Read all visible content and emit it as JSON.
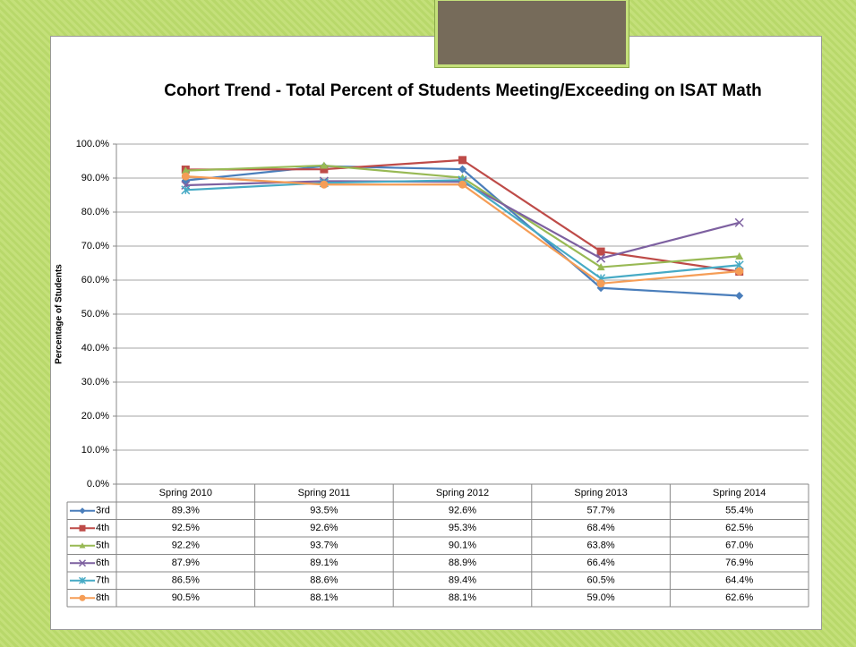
{
  "chart_data": {
    "type": "line",
    "title": "Cohort Trend - Total Percent of Students Meeting/Exceeding on ISAT Math",
    "y_label": "Percentage of Students",
    "categories": [
      "Spring 2010",
      "Spring 2011",
      "Spring 2012",
      "Spring 2013",
      "Spring 2014"
    ],
    "ylim": [
      0,
      100
    ],
    "yticks": [
      {
        "value": 0,
        "label": "0.0%"
      },
      {
        "value": 10,
        "label": "10.0%"
      },
      {
        "value": 20,
        "label": "20.0%"
      },
      {
        "value": 30,
        "label": "30.0%"
      },
      {
        "value": 40,
        "label": "40.0%"
      },
      {
        "value": 50,
        "label": "50.0%"
      },
      {
        "value": 60,
        "label": "60.0%"
      },
      {
        "value": 70,
        "label": "70.0%"
      },
      {
        "value": 80,
        "label": "80.0%"
      },
      {
        "value": 90,
        "label": "90.0%"
      },
      {
        "value": 100,
        "label": "100.0%"
      }
    ],
    "grid": true,
    "series": [
      {
        "name": "3rd",
        "color": "#4a7ebb",
        "marker": "diamond",
        "values": [
          89.3,
          93.5,
          92.6,
          57.7,
          55.4
        ],
        "value_labels": [
          "89.3%",
          "93.5%",
          "92.6%",
          "57.7%",
          "55.4%"
        ]
      },
      {
        "name": "4th",
        "color": "#be4b48",
        "marker": "square",
        "values": [
          92.5,
          92.6,
          95.3,
          68.4,
          62.5
        ],
        "value_labels": [
          "92.5%",
          "92.6%",
          "95.3%",
          "68.4%",
          "62.5%"
        ]
      },
      {
        "name": "5th",
        "color": "#98b954",
        "marker": "triangle",
        "values": [
          92.2,
          93.7,
          90.1,
          63.8,
          67.0
        ],
        "value_labels": [
          "92.2%",
          "93.7%",
          "90.1%",
          "63.8%",
          "67.0%"
        ]
      },
      {
        "name": "6th",
        "color": "#7d60a0",
        "marker": "x",
        "values": [
          87.9,
          89.1,
          88.9,
          66.4,
          76.9
        ],
        "value_labels": [
          "87.9%",
          "89.1%",
          "88.9%",
          "66.4%",
          "76.9%"
        ]
      },
      {
        "name": "7th",
        "color": "#46aac5",
        "marker": "star",
        "values": [
          86.5,
          88.6,
          89.4,
          60.5,
          64.4
        ],
        "value_labels": [
          "86.5%",
          "88.6%",
          "89.4%",
          "60.5%",
          "64.4%"
        ]
      },
      {
        "name": "8th",
        "color": "#f59d56",
        "marker": "circle",
        "values": [
          90.5,
          88.1,
          88.1,
          59.0,
          62.6
        ],
        "value_labels": [
          "90.5%",
          "88.1%",
          "88.1%",
          "59.0%",
          "62.6%"
        ]
      }
    ]
  }
}
